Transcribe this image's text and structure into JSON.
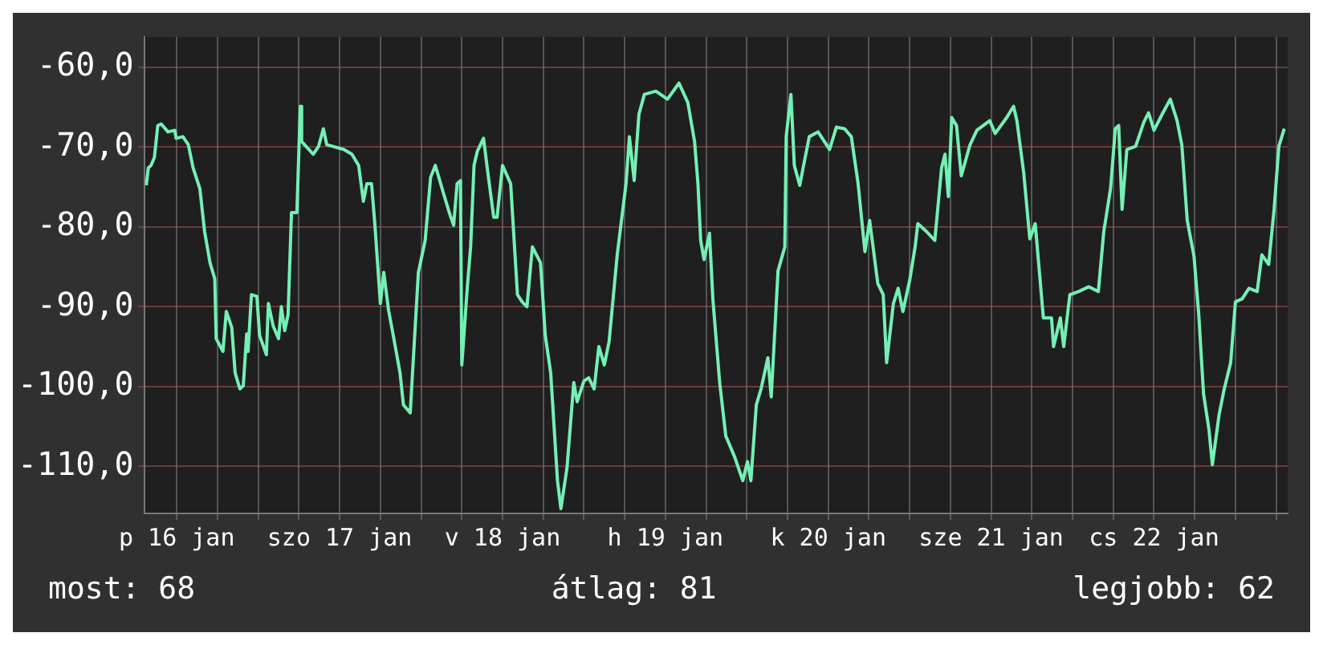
{
  "chart_data": {
    "type": "line",
    "xlim": [
      "--01-16T07:18",
      "--01-23T07:42"
    ],
    "ylim": [
      -115.9,
      -56.2
    ],
    "xticks": [
      {
        "value": "--01-16T12:00",
        "label": "p 16 jan"
      },
      {
        "value": "--01-16T18:00",
        "label": null
      },
      {
        "value": "--01-17T00:00",
        "label": null
      },
      {
        "value": "--01-17T06:00",
        "label": null
      },
      {
        "value": "--01-17T12:00",
        "label": "szo 17 jan"
      },
      {
        "value": "--01-17T18:00",
        "label": null
      },
      {
        "value": "--01-18T00:00",
        "label": null
      },
      {
        "value": "--01-18T06:00",
        "label": null
      },
      {
        "value": "--01-18T12:00",
        "label": "v 18 jan"
      },
      {
        "value": "--01-18T18:00",
        "label": null
      },
      {
        "value": "--01-19T00:00",
        "label": null
      },
      {
        "value": "--01-19T06:00",
        "label": null
      },
      {
        "value": "--01-19T12:00",
        "label": "h 19 jan"
      },
      {
        "value": "--01-19T18:00",
        "label": null
      },
      {
        "value": "--01-20T00:00",
        "label": null
      },
      {
        "value": "--01-20T06:00",
        "label": null
      },
      {
        "value": "--01-20T12:00",
        "label": "k 20 jan"
      },
      {
        "value": "--01-20T18:00",
        "label": null
      },
      {
        "value": "--01-21T00:00",
        "label": null
      },
      {
        "value": "--01-21T06:00",
        "label": null
      },
      {
        "value": "--01-21T12:00",
        "label": "sze 21 jan"
      },
      {
        "value": "--01-21T18:00",
        "label": null
      },
      {
        "value": "--01-22T00:00",
        "label": null
      },
      {
        "value": "--01-22T06:00",
        "label": null
      },
      {
        "value": "--01-22T12:00",
        "label": "cs 22 jan"
      },
      {
        "value": "--01-22T18:00",
        "label": null
      },
      {
        "value": "--01-23T00:00",
        "label": null
      },
      {
        "value": "--01-23T06:00",
        "label": null
      }
    ],
    "yticks": [
      {
        "value": -60,
        "label": "-60,0"
      },
      {
        "value": -70,
        "label": "-70,0"
      },
      {
        "value": -80,
        "label": "-80,0"
      },
      {
        "value": -90,
        "label": "-90,0"
      },
      {
        "value": -100,
        "label": "-100,0"
      },
      {
        "value": -110,
        "label": "-110,0"
      }
    ],
    "grid": true,
    "legend": false,
    "marker": "none",
    "line_style": "solid",
    "annotations": [
      "most: 68",
      "átlag: 81",
      "legjobb: 62"
    ],
    "series": [
      {
        "color": "#74f0b4",
        "x": [
          "--01-16T07:30",
          "--01-16T07:48",
          "--01-16T08:12",
          "--01-16T08:42",
          "--01-16T09:12",
          "--01-16T09:42",
          "--01-16T10:42",
          "--01-16T11:42",
          "--01-16T11:54",
          "--01-16T12:54",
          "--01-16T13:42",
          "--01-16T14:24",
          "--01-16T15:24",
          "--01-16T16:06",
          "--01-16T16:54",
          "--01-16T17:36",
          "--01-16T17:48",
          "--01-16T18:48",
          "--01-16T19:18",
          "--01-16T20:06",
          "--01-16T20:36",
          "--01-16T21:18",
          "--01-16T21:48",
          "--01-16T22:18",
          "--01-16T22:30",
          "--01-16T23:00",
          "--01-16T23:48",
          "--01-17T00:12",
          "--01-17T01:12",
          "--01-17T01:30",
          "--01-17T02:12",
          "--01-17T03:00",
          "--01-17T03:24",
          "--01-17T03:54",
          "--01-17T04:24",
          "--01-17T04:54",
          "--01-17T05:42",
          "--01-17T06:12",
          "--01-17T06:24",
          "--01-17T08:06",
          "--01-17T08:54",
          "--01-17T09:36",
          "--01-17T10:06",
          "--01-17T12:36",
          "--01-17T13:48",
          "--01-17T14:48",
          "--01-17T15:30",
          "--01-17T16:00",
          "--01-17T16:42",
          "--01-17T17:12",
          "--01-17T18:00",
          "--01-17T18:30",
          "--01-17T19:12",
          "--01-17T19:54",
          "--01-17T20:54",
          "--01-17T21:24",
          "--01-17T22:24",
          "--01-17T23:06",
          "--01-17T23:36",
          "--01-18T00:36",
          "--01-18T01:24",
          "--01-18T02:06",
          "--01-18T03:18",
          "--01-18T04:18",
          "--01-18T04:48",
          "--01-18T05:18",
          "--01-18T05:48",
          "--01-18T06:00",
          "--01-18T06:48",
          "--01-18T07:18",
          "--01-18T07:48",
          "--01-18T08:18",
          "--01-18T09:12",
          "--01-18T09:42",
          "--01-18T10:42",
          "--01-18T11:12",
          "--01-18T12:00",
          "--01-18T13:12",
          "--01-18T14:12",
          "--01-18T14:54",
          "--01-18T15:36",
          "--01-18T16:24",
          "--01-18T17:36",
          "--01-18T18:18",
          "--01-18T19:06",
          "--01-18T20:06",
          "--01-18T20:36",
          "--01-18T21:30",
          "--01-18T22:30",
          "--01-18T23:00",
          "--01-19T00:00",
          "--01-19T00:42",
          "--01-19T01:30",
          "--01-19T02:12",
          "--01-19T03:00",
          "--01-19T03:42",
          "--01-19T04:54",
          "--01-19T06:12",
          "--01-19T06:42",
          "--01-19T07:24",
          "--01-19T08:06",
          "--01-19T08:54",
          "--01-19T10:36",
          "--01-19T12:18",
          "--01-19T14:00",
          "--01-19T15:18",
          "--01-19T16:18",
          "--01-19T16:48",
          "--01-19T17:12",
          "--01-19T17:42",
          "--01-19T18:30",
          "--01-19T19:00",
          "--01-19T20:00",
          "--01-19T20:54",
          "--01-19T22:12",
          "--01-19T23:24",
          "--01-20T00:06",
          "--01-20T00:36",
          "--01-20T01:24",
          "--01-20T02:06",
          "--01-20T03:06",
          "--01-20T03:36",
          "--01-20T04:36",
          "--01-20T05:36",
          "--01-20T05:48",
          "--01-20T06:30",
          "--01-20T07:00",
          "--01-20T07:48",
          "--01-20T08:18",
          "--01-20T09:12",
          "--01-20T10:30",
          "--01-20T12:12",
          "--01-20T13:12",
          "--01-20T14:24",
          "--01-20T15:24",
          "--01-20T16:24",
          "--01-20T17:24",
          "--01-20T18:06",
          "--01-20T19:18",
          "--01-20T20:06",
          "--01-20T20:36",
          "--01-20T21:36",
          "--01-20T22:18",
          "--01-20T23:00",
          "--01-21T00:00",
          "--01-21T00:48",
          "--01-21T01:12",
          "--01-21T02:30",
          "--01-21T03:42",
          "--01-21T04:42",
          "--01-21T05:12",
          "--01-21T05:42",
          "--01-21T06:12",
          "--01-21T06:54",
          "--01-21T07:36",
          "--01-21T08:54",
          "--01-21T09:54",
          "--01-21T11:48",
          "--01-21T12:36",
          "--01-21T14:18",
          "--01-21T15:18",
          "--01-21T15:48",
          "--01-21T16:48",
          "--01-21T17:42",
          "--01-21T18:30",
          "--01-21T19:42",
          "--01-21T20:54",
          "--01-21T21:12",
          "--01-21T22:12",
          "--01-21T22:42",
          "--01-21T23:36",
          "--01-22T00:54",
          "--01-22T02:24",
          "--01-22T03:48",
          "--01-22T04:36",
          "--01-22T05:36",
          "--01-22T06:18",
          "--01-22T06:48",
          "--01-22T07:18",
          "--01-22T08:00",
          "--01-22T09:18",
          "--01-22T10:30",
          "--01-22T11:12",
          "--01-22T12:00",
          "--01-22T13:12",
          "--01-22T14:24",
          "--01-22T15:24",
          "--01-22T16:06",
          "--01-22T16:54",
          "--01-22T17:54",
          "--01-22T18:36",
          "--01-22T19:18",
          "--01-22T20:06",
          "--01-22T20:36",
          "--01-22T21:36",
          "--01-22T22:18",
          "--01-22T23:18",
          "--01-23T00:00",
          "--01-23T01:00",
          "--01-23T02:00",
          "--01-23T03:12",
          "--01-23T03:54",
          "--01-23T04:54",
          "--01-23T05:42",
          "--01-23T06:24",
          "--01-23T07:12"
        ],
        "values": [
          -74.8,
          -72.6,
          -72.3,
          -71.3,
          -67.3,
          -67.1,
          -68.1,
          -67.9,
          -68.9,
          -68.7,
          -69.7,
          -72.6,
          -75.2,
          -80.6,
          -84.5,
          -86.5,
          -94.0,
          -95.6,
          -90.6,
          -92.6,
          -98.3,
          -100.3,
          -99.9,
          -93.4,
          -95.6,
          -88.5,
          -88.7,
          -93.6,
          -96.0,
          -89.6,
          -92.4,
          -94.0,
          -90.0,
          -93.0,
          -91.0,
          -78.2,
          -78.2,
          -64.9,
          -69.3,
          -70.9,
          -69.9,
          -67.7,
          -69.7,
          -70.3,
          -70.9,
          -72.3,
          -76.8,
          -74.6,
          -74.6,
          -79.8,
          -89.6,
          -85.7,
          -90.4,
          -93.6,
          -98.3,
          -102.3,
          -103.3,
          -93.0,
          -85.7,
          -81.7,
          -73.8,
          -72.3,
          -75.8,
          -78.6,
          -79.8,
          -74.6,
          -74.2,
          -97.3,
          -87.7,
          -82.5,
          -72.3,
          -70.5,
          -68.9,
          -72.3,
          -78.8,
          -78.8,
          -72.3,
          -74.6,
          -88.5,
          -89.4,
          -90.0,
          -82.5,
          -84.5,
          -93.6,
          -98.3,
          -111.8,
          -115.3,
          -110.2,
          -99.5,
          -101.9,
          -99.3,
          -98.9,
          -100.3,
          -95.0,
          -97.3,
          -94.4,
          -83.5,
          -74.6,
          -68.7,
          -74.2,
          -65.9,
          -63.4,
          -63.0,
          -64.0,
          -62.0,
          -64.4,
          -69.3,
          -74.6,
          -81.7,
          -84.1,
          -80.8,
          -89.1,
          -99.5,
          -106.2,
          -108.8,
          -111.8,
          -109.4,
          -111.8,
          -102.3,
          -100.3,
          -96.4,
          -101.3,
          -85.5,
          -82.5,
          -68.7,
          -63.4,
          -72.3,
          -74.8,
          -72.6,
          -68.7,
          -68.1,
          -70.3,
          -67.5,
          -67.7,
          -68.7,
          -74.6,
          -83.1,
          -79.2,
          -87.1,
          -88.5,
          -97.0,
          -89.6,
          -87.7,
          -90.6,
          -86.7,
          -82.5,
          -79.6,
          -80.6,
          -81.7,
          -72.6,
          -70.9,
          -76.2,
          -66.3,
          -67.3,
          -73.6,
          -69.7,
          -67.9,
          -66.7,
          -68.3,
          -66.3,
          -64.9,
          -66.7,
          -73.2,
          -81.5,
          -79.6,
          -91.4,
          -91.4,
          -95.0,
          -91.4,
          -95.0,
          -88.5,
          -88.1,
          -87.5,
          -88.1,
          -80.6,
          -75.2,
          -67.7,
          -67.3,
          -77.8,
          -70.3,
          -69.9,
          -66.9,
          -65.7,
          -67.9,
          -65.9,
          -64.0,
          -66.7,
          -69.7,
          -79.2,
          -83.7,
          -91.0,
          -100.9,
          -105.4,
          -109.8,
          -103.5,
          -100.5,
          -97.0,
          -89.4,
          -89.0,
          -87.7,
          -88.1,
          -83.5,
          -84.7,
          -77.8,
          -69.9,
          -67.7
        ]
      }
    ]
  }
}
